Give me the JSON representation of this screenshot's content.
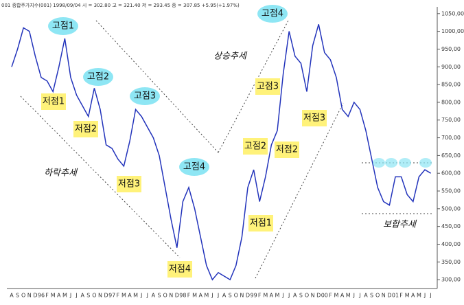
{
  "chart_data": {
    "type": "line",
    "title": "001 종합주가지수(001) 1998/09/04 시 = 302.80 고 = 321.40 저 = 293.45 종 = 307.85 +5.95(+1.97%)",
    "categories": [
      "A",
      "S",
      "O",
      "N",
      "D",
      "96",
      "F",
      "M",
      "A",
      "M",
      "J",
      "J",
      "A",
      "S",
      "O",
      "N",
      "D",
      "97",
      "F",
      "M",
      "A",
      "M",
      "J",
      "J",
      "A",
      "S",
      "O",
      "N",
      "D",
      "98",
      "F",
      "M",
      "A",
      "M",
      "J",
      "J",
      "A",
      "S",
      "O",
      "N",
      "D",
      "99",
      "F",
      "M",
      "A",
      "M",
      "J",
      "J",
      "A",
      "S",
      "O",
      "N",
      "D",
      "00",
      "F",
      "M",
      "A",
      "M",
      "J",
      "J",
      "A",
      "S",
      "O",
      "N",
      "D",
      "01",
      "F",
      "M",
      "A",
      "M",
      "J",
      "J"
    ],
    "series": [
      {
        "name": "종합주가지수",
        "color": "#2233bb",
        "values": [
          900,
          950,
          1010,
          1000,
          930,
          870,
          860,
          830,
          900,
          980,
          870,
          820,
          790,
          760,
          840,
          780,
          680,
          670,
          640,
          620,
          690,
          780,
          760,
          730,
          700,
          650,
          560,
          470,
          390,
          520,
          560,
          500,
          420,
          340,
          300,
          320,
          310,
          300,
          340,
          420,
          560,
          610,
          520,
          590,
          680,
          720,
          880,
          1000,
          930,
          910,
          830,
          960,
          1020,
          940,
          920,
          870,
          780,
          760,
          800,
          780,
          720,
          640,
          560,
          520,
          510,
          590,
          590,
          540,
          520,
          590,
          610,
          600
        ]
      }
    ],
    "ylim": [
      279,
      1069
    ],
    "yticks": [
      {
        "value": 300,
        "label": "300,00"
      },
      {
        "value": 350,
        "label": "350,00"
      },
      {
        "value": 400,
        "label": "400,00"
      },
      {
        "value": 450,
        "label": "450,00"
      },
      {
        "value": 500,
        "label": "500,00"
      },
      {
        "value": 550,
        "label": "550,00"
      },
      {
        "value": 600,
        "label": "600,00"
      },
      {
        "value": 650,
        "label": "650,00"
      },
      {
        "value": 700,
        "label": "700,00"
      },
      {
        "value": 750,
        "label": "750,00"
      },
      {
        "value": 800,
        "label": "800,00"
      },
      {
        "value": 850,
        "label": "850,00"
      },
      {
        "value": 900,
        "label": "900,00"
      },
      {
        "value": 950,
        "label": "950,00"
      },
      {
        "value": 1000,
        "label": "1000,00"
      },
      {
        "value": 1050,
        "label": "1050,00"
      }
    ],
    "annotations": [
      "고점1",
      "저점1",
      "고점2",
      "저점2",
      "고점3",
      "저점3",
      "고점4",
      "저점4",
      "하락추세",
      "상승추세",
      "고점4",
      "고점3",
      "저점2",
      "저점3",
      "고점2",
      "저점1",
      "보합추세"
    ]
  }
}
